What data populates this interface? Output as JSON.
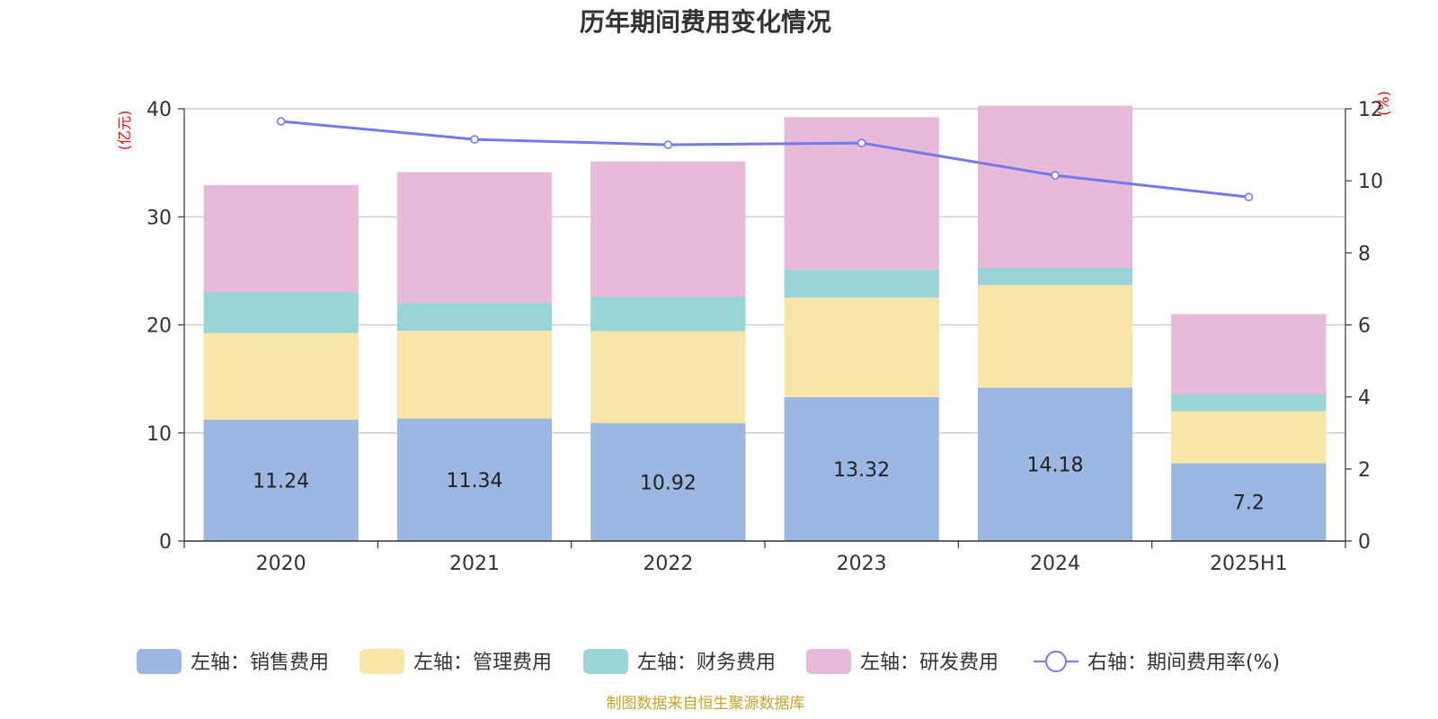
{
  "chart_data": {
    "type": "bar",
    "stacked": true,
    "title": "历年期间费用变化情况",
    "categories": [
      "2020",
      "2021",
      "2022",
      "2023",
      "2024",
      "2025H1"
    ],
    "left_axis": {
      "unit": "(亿元)",
      "ylim": [
        0,
        40
      ],
      "ticks": [
        "0",
        "10",
        "20",
        "30",
        "40"
      ]
    },
    "right_axis": {
      "unit": "(%)",
      "ylim": [
        0,
        12
      ],
      "ticks": [
        "0",
        "2",
        "4",
        "6",
        "8",
        "10",
        "12"
      ]
    },
    "series": [
      {
        "name": "左轴：销售费用",
        "axis": "left",
        "color": "#9bb7e2",
        "values": [
          11.24,
          11.34,
          10.92,
          13.32,
          14.18,
          7.2
        ],
        "labels": [
          "11.24",
          "11.34",
          "10.92",
          "13.32",
          "14.18",
          "7.2"
        ]
      },
      {
        "name": "左轴：管理费用",
        "axis": "left",
        "color": "#f8e6a8",
        "values": [
          8.0,
          8.1,
          8.5,
          9.2,
          9.5,
          4.8
        ]
      },
      {
        "name": "左轴：财务费用",
        "axis": "left",
        "color": "#99d5d6",
        "values": [
          3.8,
          2.6,
          3.2,
          2.6,
          1.6,
          1.6
        ]
      },
      {
        "name": "左轴：研发费用",
        "axis": "left",
        "color": "#e8b9d9",
        "values": [
          9.9,
          12.1,
          12.5,
          14.1,
          15.0,
          7.4
        ]
      },
      {
        "name": "右轴：期间费用率(%)",
        "axis": "right",
        "type": "line",
        "color": "#7479ec",
        "values": [
          11.65,
          11.15,
          11.0,
          11.05,
          10.15,
          9.55
        ]
      }
    ],
    "grid": true,
    "legend": "bottom",
    "source": "制图数据来自恒生聚源数据库"
  }
}
